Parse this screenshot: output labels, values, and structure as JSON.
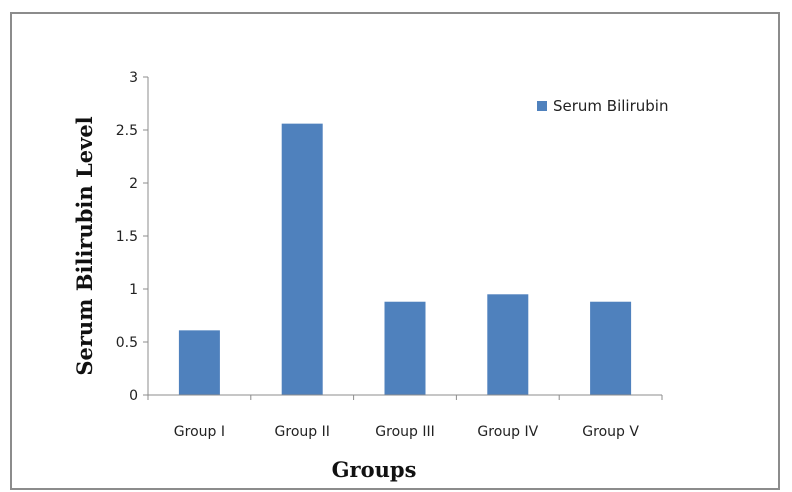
{
  "chart_data": {
    "type": "bar",
    "title": "",
    "xlabel": "Groups",
    "ylabel": "Serum Bilirubin Level",
    "categories": [
      "Group I",
      "Group II",
      "Group III",
      "Group IV",
      "Group V"
    ],
    "series": [
      {
        "name": "Serum Bilirubin",
        "color": "#4f81bd",
        "values": [
          0.61,
          2.56,
          0.88,
          0.95,
          0.88
        ]
      }
    ],
    "ylim": [
      0,
      3
    ],
    "yticks": [
      "0",
      "0.5",
      "1",
      "1.5",
      "2",
      "2.5",
      "3"
    ],
    "grid": false,
    "legend_position": "top-right"
  }
}
